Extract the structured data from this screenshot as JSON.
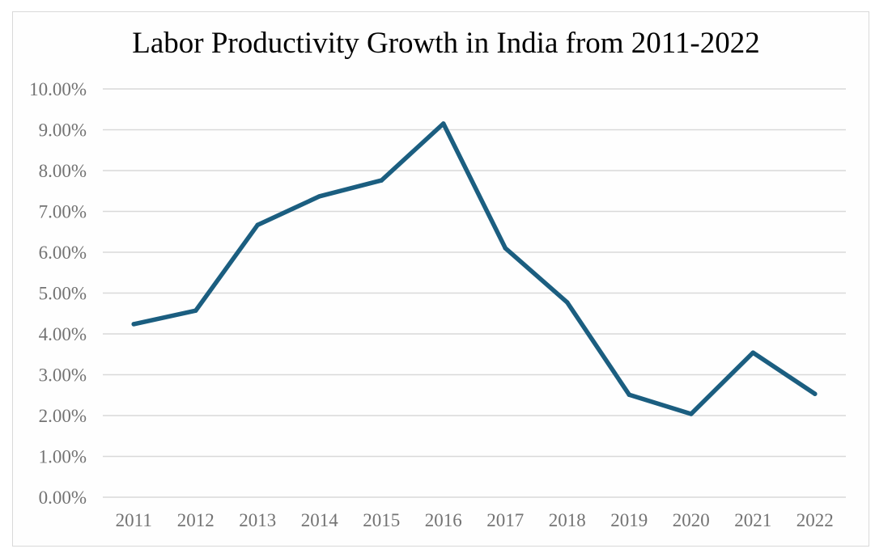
{
  "chart_data": {
    "type": "line",
    "title": "Labor Productivity Growth in India from 2011-2022",
    "xlabel": "",
    "ylabel": "",
    "categories": [
      "2011",
      "2012",
      "2013",
      "2014",
      "2015",
      "2016",
      "2017",
      "2018",
      "2019",
      "2020",
      "2021",
      "2022"
    ],
    "series": [
      {
        "name": "Labor Productivity Growth",
        "values": [
          4.24,
          4.57,
          6.67,
          7.37,
          7.76,
          9.15,
          6.1,
          4.77,
          2.51,
          2.04,
          3.54,
          2.53
        ],
        "color": "#1b5e80"
      }
    ],
    "ylim": [
      0,
      10
    ],
    "yticks": [
      0,
      1,
      2,
      3,
      4,
      5,
      6,
      7,
      8,
      9,
      10
    ],
    "ytick_labels": [
      "0.00%",
      "1.00%",
      "2.00%",
      "3.00%",
      "4.00%",
      "5.00%",
      "6.00%",
      "7.00%",
      "8.00%",
      "9.00%",
      "10.00%"
    ],
    "grid": true,
    "legend": "none",
    "gridline_color": "#d9d9d9",
    "tick_color": "#737373"
  }
}
